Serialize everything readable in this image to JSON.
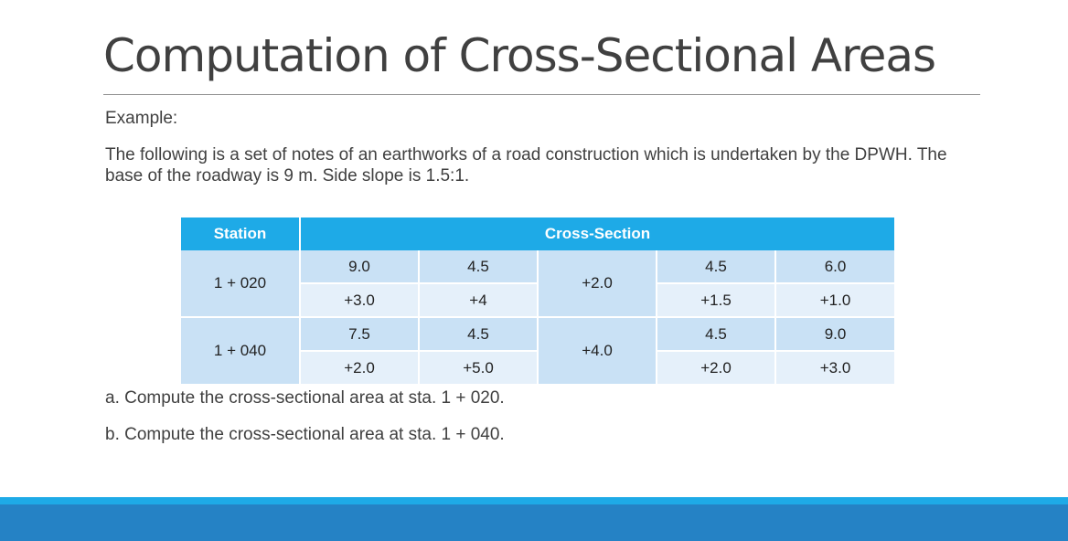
{
  "slide": {
    "title": "Computation of Cross-Sectional Areas",
    "example_label": "Example:",
    "paragraph": "The following is a set of notes of an earthworks of a road construction which is undertaken by the DPWH. The base of the roadway is 9 m. Side slope is 1.5:1."
  },
  "table": {
    "headers": {
      "station": "Station",
      "cross_section": "Cross-Section"
    },
    "rows": [
      {
        "station": "1 + 020",
        "top": [
          "9.0",
          "4.5",
          "4.5",
          "6.0"
        ],
        "bottom": [
          "+3.0",
          "+4",
          "+1.5",
          "+1.0"
        ],
        "center": "+2.0"
      },
      {
        "station": "1 + 040",
        "top": [
          "7.5",
          "4.5",
          "4.5",
          "9.0"
        ],
        "bottom": [
          "+2.0",
          "+5.0",
          "+2.0",
          "+3.0"
        ],
        "center": "+4.0"
      }
    ]
  },
  "questions": {
    "a": "a. Compute the cross-sectional area at sta. 1 + 020.",
    "b": "b. Compute the cross-sectional area at sta. 1 + 040."
  }
}
